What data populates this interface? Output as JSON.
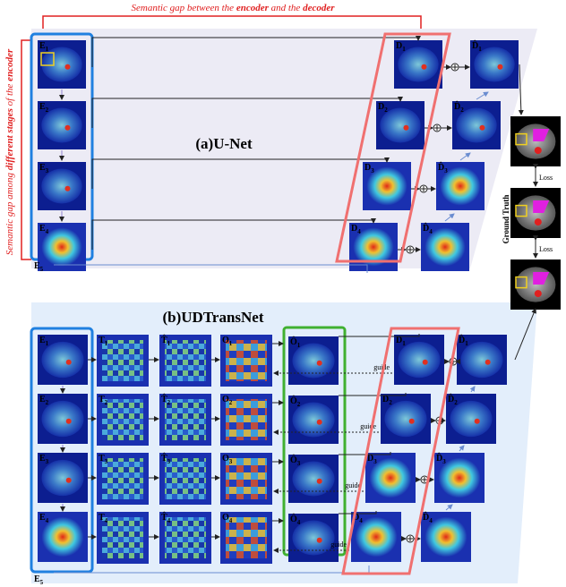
{
  "semantic_gap_top": [
    {
      "text": "Semantic gap between the ",
      "bold": false
    },
    {
      "text": "encoder",
      "bold": true
    },
    {
      "text": " and the ",
      "bold": false
    },
    {
      "text": "decoder",
      "bold": true
    }
  ],
  "semantic_gap_left": [
    {
      "text": "Semantic gap among ",
      "bold": false
    },
    {
      "text": "different stages",
      "bold": true
    },
    {
      "text": " of the ",
      "bold": false
    },
    {
      "text": "encoder",
      "bold": true
    }
  ],
  "panel_a": {
    "title": "(a)U-Net",
    "encoder": [
      {
        "main": "E",
        "sub": "1"
      },
      {
        "main": "E",
        "sub": "2"
      },
      {
        "main": "E",
        "sub": "3"
      },
      {
        "main": "E",
        "sub": "4"
      }
    ],
    "bottleneck": {
      "main": "E",
      "sub": "5"
    },
    "decoder": [
      {
        "main": "D",
        "sub": "1"
      },
      {
        "main": "D",
        "sub": "2"
      },
      {
        "main": "D",
        "sub": "3"
      },
      {
        "main": "D",
        "sub": "4"
      }
    ],
    "decoder_hat": [
      {
        "main": "D̂",
        "sub": "1"
      },
      {
        "main": "D̂",
        "sub": "2"
      },
      {
        "main": "D̂",
        "sub": "3"
      },
      {
        "main": "D̂",
        "sub": "4"
      }
    ]
  },
  "panel_b": {
    "title": "(b)UDTransNet",
    "encoder": [
      {
        "main": "E",
        "sub": "1"
      },
      {
        "main": "E",
        "sub": "2"
      },
      {
        "main": "E",
        "sub": "3"
      },
      {
        "main": "E",
        "sub": "4"
      }
    ],
    "bottleneck": {
      "main": "E",
      "sub": "5"
    },
    "tokens": [
      {
        "main": "T",
        "sub": "1"
      },
      {
        "main": "T",
        "sub": "2"
      },
      {
        "main": "T",
        "sub": "3"
      },
      {
        "main": "T",
        "sub": "4"
      }
    ],
    "tokens_hat": [
      {
        "main": "T̂",
        "sub": "1"
      },
      {
        "main": "T̂",
        "sub": "2"
      },
      {
        "main": "T̂",
        "sub": "3"
      },
      {
        "main": "T̂",
        "sub": "4"
      }
    ],
    "outputs": [
      {
        "main": "O",
        "sub": "1"
      },
      {
        "main": "O",
        "sub": "2"
      },
      {
        "main": "O",
        "sub": "3"
      },
      {
        "main": "O",
        "sub": "4"
      }
    ],
    "outputs_hat": [
      {
        "main": "Ô",
        "sub": "1"
      },
      {
        "main": "Ô",
        "sub": "2"
      },
      {
        "main": "Ô",
        "sub": "3"
      },
      {
        "main": "Ô",
        "sub": "4"
      }
    ],
    "decoder": [
      {
        "main": "D",
        "sub": "1"
      },
      {
        "main": "D",
        "sub": "2"
      },
      {
        "main": "D",
        "sub": "3"
      },
      {
        "main": "D",
        "sub": "4"
      }
    ],
    "decoder_hat": [
      {
        "main": "D̂",
        "sub": "1"
      },
      {
        "main": "D̂",
        "sub": "2"
      },
      {
        "main": "D̂",
        "sub": "3"
      },
      {
        "main": "D̂",
        "sub": "4"
      }
    ],
    "guide": [
      "guide",
      "guide",
      "guide",
      "guide"
    ]
  },
  "ground_truth": {
    "label": "Ground Truth",
    "loss": [
      "Loss",
      "Loss"
    ]
  }
}
